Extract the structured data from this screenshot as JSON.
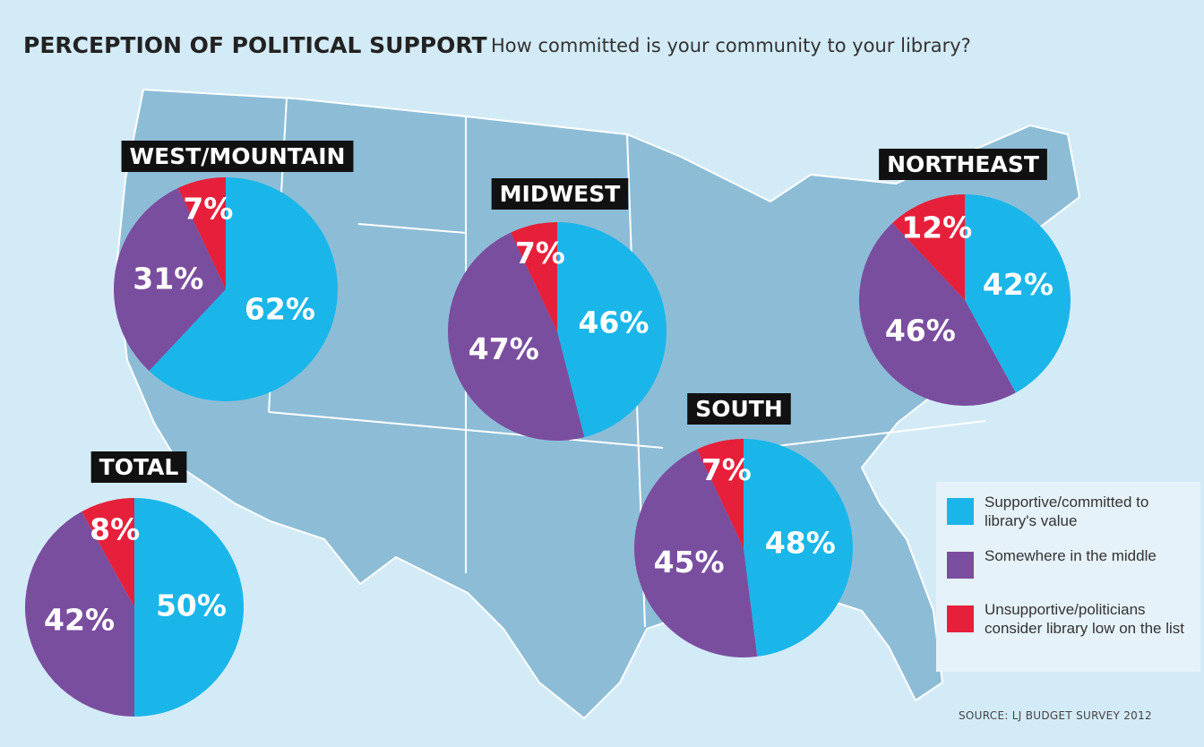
{
  "title": "PERCEPTION OF POLITICAL SUPPORT",
  "subtitle": "How committed is your community to your library?",
  "source": "SOURCE: LJ BUDGET SURVEY 2012",
  "chart_data": [
    {
      "type": "pie",
      "title": "WEST/MOUNTAIN",
      "categories": [
        "Supportive/committed to library's value",
        "Somewhere in the middle",
        "Unsupportive/politicians consider library low on the list"
      ],
      "values": [
        62,
        31,
        7
      ],
      "value_labels": [
        "62%",
        "31%",
        "7%"
      ],
      "colors": [
        "#1ab6ea",
        "#7a4e9f",
        "#e6203b"
      ]
    },
    {
      "type": "pie",
      "title": "MIDWEST",
      "categories": [
        "Supportive/committed to library's value",
        "Somewhere in the middle",
        "Unsupportive/politicians consider library low on the list"
      ],
      "values": [
        46,
        47,
        7
      ],
      "value_labels": [
        "46%",
        "47%",
        "7%"
      ],
      "colors": [
        "#1ab6ea",
        "#7a4e9f",
        "#e6203b"
      ]
    },
    {
      "type": "pie",
      "title": "NORTHEAST",
      "categories": [
        "Supportive/committed to library's value",
        "Somewhere in the middle",
        "Unsupportive/politicians consider library low on the list"
      ],
      "values": [
        42,
        46,
        12
      ],
      "value_labels": [
        "42%",
        "46%",
        "12%"
      ],
      "colors": [
        "#1ab6ea",
        "#7a4e9f",
        "#e6203b"
      ]
    },
    {
      "type": "pie",
      "title": "SOUTH",
      "categories": [
        "Supportive/committed to library's value",
        "Somewhere in the middle",
        "Unsupportive/politicians consider library low on the list"
      ],
      "values": [
        48,
        45,
        7
      ],
      "value_labels": [
        "48%",
        "45%",
        "7%"
      ],
      "colors": [
        "#1ab6ea",
        "#7a4e9f",
        "#e6203b"
      ]
    },
    {
      "type": "pie",
      "title": "TOTAL",
      "categories": [
        "Supportive/committed to library's value",
        "Somewhere in the middle",
        "Unsupportive/politicians consider library low on the list"
      ],
      "values": [
        50,
        42,
        8
      ],
      "value_labels": [
        "50%",
        "42%",
        "8%"
      ],
      "colors": [
        "#1ab6ea",
        "#7a4e9f",
        "#e6203b"
      ]
    }
  ]
}
